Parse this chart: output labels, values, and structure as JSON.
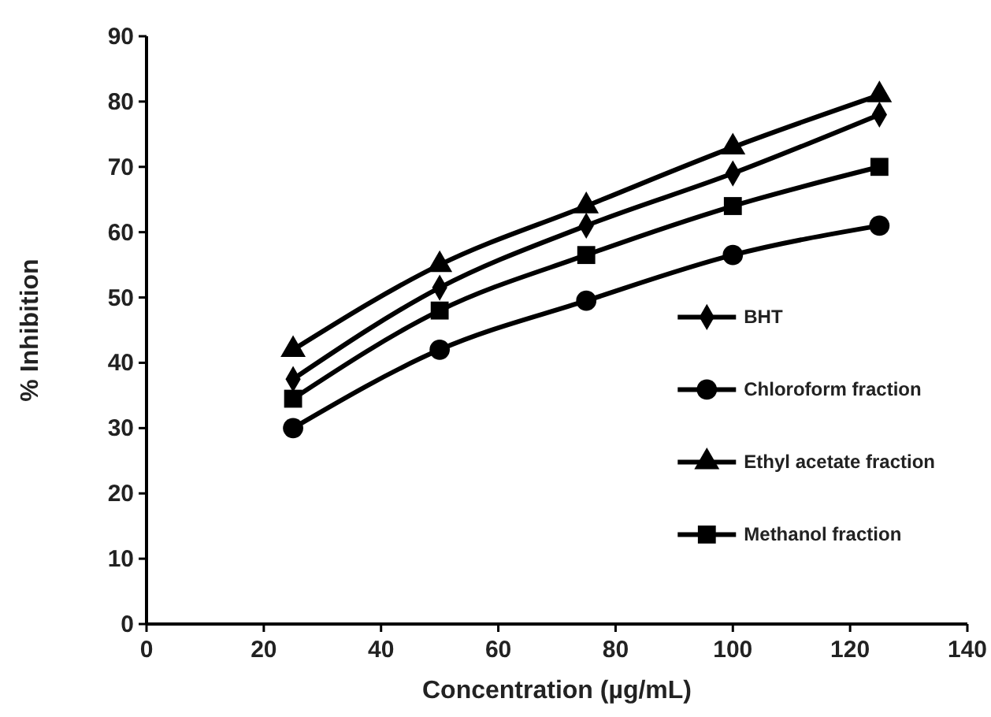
{
  "chart_data": {
    "type": "line",
    "xlabel": "Concentration (µg/mL)",
    "ylabel": "% Inhibition",
    "x": [
      25,
      50,
      75,
      100,
      125
    ],
    "series": [
      {
        "name": "BHT",
        "color": "#000000",
        "marker": "diamond",
        "values": [
          37.5,
          51.5,
          61,
          69,
          78
        ]
      },
      {
        "name": "Chloroform fraction",
        "color": "#000000",
        "marker": "circle",
        "values": [
          30,
          42,
          49.5,
          56.5,
          61
        ]
      },
      {
        "name": "Ethyl acetate fraction",
        "color": "#000000",
        "marker": "triangle",
        "values": [
          42,
          55,
          64,
          73,
          81
        ]
      },
      {
        "name": "Methanol fraction",
        "color": "#000000",
        "marker": "square",
        "values": [
          34.5,
          48,
          56.5,
          64,
          70
        ]
      }
    ],
    "xlim": [
      0,
      140
    ],
    "xticks": [
      0,
      20,
      40,
      60,
      80,
      100,
      120,
      140
    ],
    "ylim": [
      0,
      90
    ],
    "yticks": [
      0,
      10,
      20,
      30,
      40,
      50,
      60,
      70,
      80,
      90
    ],
    "grid": false,
    "legend": "right",
    "line_style": "solid"
  }
}
